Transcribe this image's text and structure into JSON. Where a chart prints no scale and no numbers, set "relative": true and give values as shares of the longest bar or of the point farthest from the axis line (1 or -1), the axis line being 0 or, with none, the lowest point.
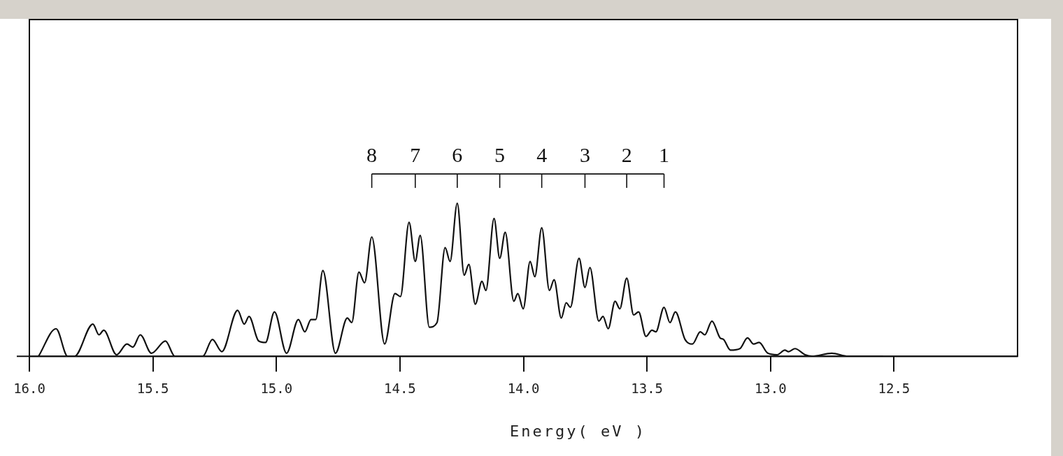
{
  "chart_data": {
    "type": "line",
    "xlabel": "Energy( eV )",
    "relative": true,
    "color": "#111111",
    "marker": "none",
    "line_style": "solid",
    "grid": false,
    "legend": false,
    "xlim": [
      16.0,
      12.0
    ],
    "xticks": [
      {
        "value": 16,
        "label": "16.0"
      },
      {
        "value": 15.5,
        "label": "15.5"
      },
      {
        "value": 15,
        "label": "15.0"
      },
      {
        "value": 14.5,
        "label": "14.5"
      },
      {
        "value": 14,
        "label": "14.0"
      },
      {
        "value": 13.5,
        "label": "13.5"
      },
      {
        "value": 13,
        "label": "13.0"
      },
      {
        "value": 12.5,
        "label": "12.5"
      }
    ],
    "x": [
      15.963,
      15.892,
      15.845,
      15.817,
      15.743,
      15.718,
      15.699,
      15.647,
      15.605,
      15.581,
      15.551,
      15.506,
      15.449,
      15.411,
      15.298,
      15.259,
      15.221,
      15.157,
      15.13,
      15.111,
      15.072,
      15.044,
      15.008,
      14.959,
      14.911,
      14.885,
      14.86,
      14.841,
      14.812,
      14.761,
      14.713,
      14.695,
      14.666,
      14.643,
      14.614,
      14.562,
      14.52,
      14.498,
      14.463,
      14.438,
      14.418,
      14.381,
      14.35,
      14.317,
      14.297,
      14.268,
      14.24,
      14.221,
      14.195,
      14.168,
      14.152,
      14.119,
      14.096,
      14.074,
      14.039,
      14.023,
      14.001,
      13.973,
      13.954,
      13.926,
      13.895,
      13.876,
      13.847,
      13.827,
      13.81,
      13.775,
      13.751,
      13.731,
      13.695,
      13.678,
      13.657,
      13.629,
      13.61,
      13.582,
      13.554,
      13.534,
      13.504,
      13.48,
      13.464,
      13.431,
      13.407,
      13.385,
      13.346,
      13.316,
      13.284,
      13.266,
      13.237,
      13.204,
      13.19,
      13.162,
      13.124,
      13.093,
      13.068,
      13.046,
      13.011,
      12.973,
      12.942,
      12.927,
      12.901,
      12.86,
      12.832,
      12.752,
      12.686,
      12.545
    ],
    "values": [
      0,
      0.18,
      0,
      0,
      0.21,
      0.14,
      0.17,
      0.01,
      0.08,
      0.06,
      0.14,
      0.02,
      0.1,
      0,
      0,
      0.11,
      0.03,
      0.3,
      0.21,
      0.26,
      0.1,
      0.09,
      0.29,
      0.02,
      0.24,
      0.16,
      0.24,
      0.24,
      0.56,
      0.02,
      0.25,
      0.22,
      0.55,
      0.48,
      0.78,
      0.08,
      0.41,
      0.39,
      0.875,
      0.62,
      0.79,
      0.19,
      0.22,
      0.71,
      0.62,
      1,
      0.53,
      0.6,
      0.34,
      0.49,
      0.43,
      0.9,
      0.64,
      0.81,
      0.36,
      0.41,
      0.31,
      0.62,
      0.52,
      0.84,
      0.43,
      0.5,
      0.25,
      0.35,
      0.32,
      0.64,
      0.45,
      0.58,
      0.23,
      0.26,
      0.18,
      0.36,
      0.31,
      0.51,
      0.27,
      0.29,
      0.13,
      0.17,
      0.16,
      0.32,
      0.22,
      0.29,
      0.11,
      0.08,
      0.16,
      0.14,
      0.23,
      0.12,
      0.11,
      0.04,
      0.05,
      0.12,
      0.08,
      0.09,
      0.02,
      0.01,
      0.04,
      0.03,
      0.05,
      0.01,
      0,
      0.02,
      0,
      0
    ],
    "annotations": [
      {
        "text": "8",
        "x": 14.614
      },
      {
        "text": "7",
        "x": 14.438
      },
      {
        "text": "6",
        "x": 14.268
      },
      {
        "text": "5",
        "x": 14.096
      },
      {
        "text": "4",
        "x": 13.926
      },
      {
        "text": "3",
        "x": 13.751
      },
      {
        "text": "2",
        "x": 13.582
      },
      {
        "text": "1",
        "x": 13.431
      }
    ]
  }
}
